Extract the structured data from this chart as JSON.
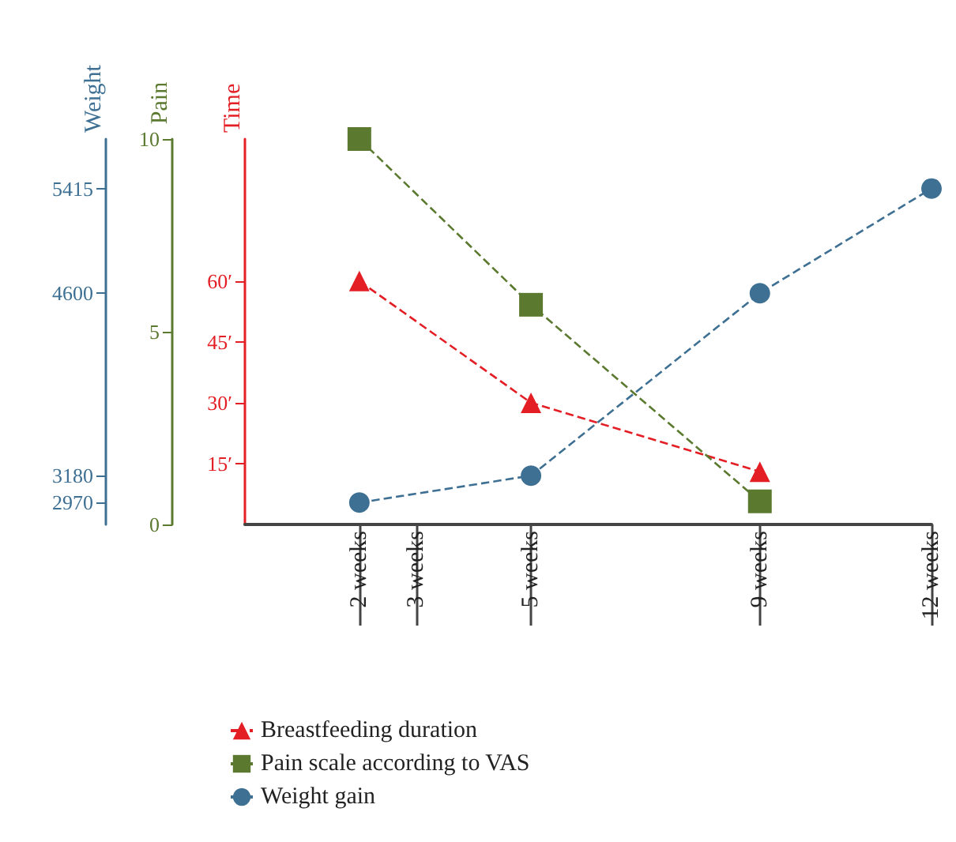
{
  "chart_data": {
    "type": "line",
    "xlim": [
      0,
      12
    ],
    "xticks": [
      {
        "value": 2,
        "label": "2 weeks"
      },
      {
        "value": 3,
        "label": "3 weeks"
      },
      {
        "value": 5,
        "label": "5 weeks"
      },
      {
        "value": 9,
        "label": "9 weeks"
      },
      {
        "value": 12,
        "label": "12 weeks"
      }
    ],
    "ylabel": "Time",
    "ylim": [
      0,
      95
    ],
    "yticks": [
      {
        "value": 15,
        "label": "15′"
      },
      {
        "value": 30,
        "label": "30′"
      },
      {
        "value": 45,
        "label": "45′"
      },
      {
        "value": 60,
        "label": "60′"
      }
    ],
    "y2label": "Pain",
    "y2lim": [
      0,
      10
    ],
    "y2ticks": [
      0,
      5,
      10
    ],
    "y3label": "Weight",
    "y3lim": [
      2800,
      5800
    ],
    "y3ticks": [
      2970,
      3180,
      4600,
      5415
    ],
    "series": [
      {
        "name": "Breastfeeding duration",
        "color": "#e31e24",
        "axis": "y",
        "marker": "triangle",
        "x": [
          2,
          5,
          9
        ],
        "values": [
          60,
          30,
          13
        ]
      },
      {
        "name": "Pain scale according to VAS",
        "color": "#5b7a30",
        "axis": "y2",
        "marker": "square",
        "x": [
          2,
          5,
          9
        ],
        "values": [
          10,
          5.7,
          0.6
        ]
      },
      {
        "name": "Weight gain",
        "color": "#3e7093",
        "axis": "y3",
        "marker": "circle",
        "x": [
          2,
          5,
          9,
          12
        ],
        "values": [
          2970,
          3180,
          4600,
          5415
        ]
      }
    ],
    "line_style": "dashed",
    "legend": "bottom",
    "grid": false
  }
}
